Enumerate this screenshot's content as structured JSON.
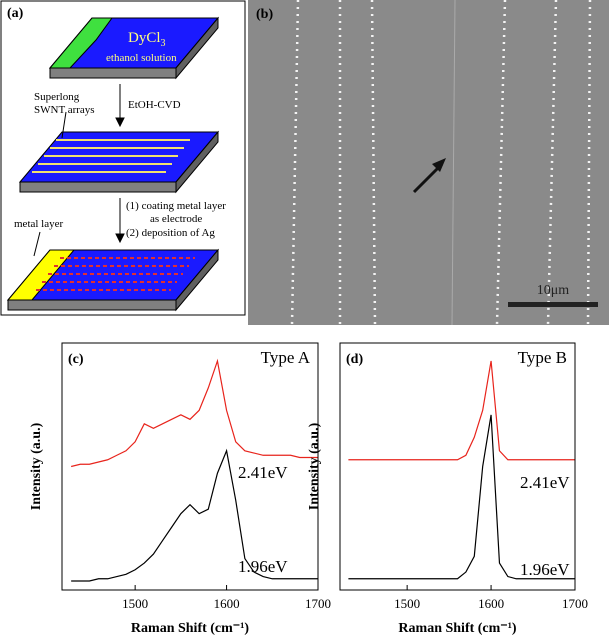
{
  "panel_a": {
    "label": "(a)",
    "dycl": "DyCl",
    "dycl_sub": "3",
    "solution": "ethanol solution",
    "step1": "EtOH-CVD",
    "arrays_1": "Superlong",
    "arrays_2": "SWNT arrays",
    "step2_1": "(1) coating metal layer",
    "step2_2": "as electrode",
    "step2_3": "(2) deposition of Ag",
    "metal": "metal  layer"
  },
  "panel_b": {
    "label": "(b)",
    "scale": "10μm"
  },
  "chart_data": [
    {
      "type": "line",
      "label": "(c)",
      "title": "Type A",
      "x_label": "Raman Shift (cm⁻¹)",
      "y_label": "Intensity (a.u.)",
      "x": [
        1430,
        1440,
        1450,
        1460,
        1470,
        1480,
        1490,
        1500,
        1510,
        1520,
        1530,
        1540,
        1550,
        1560,
        1570,
        1580,
        1590,
        1600,
        1610,
        1620,
        1630,
        1640,
        1650,
        1660,
        1670,
        1680,
        1690,
        1700
      ],
      "series": [
        {
          "name": "2.41eV",
          "color": "#e8241c",
          "values": [
            0.55,
            0.56,
            0.56,
            0.57,
            0.58,
            0.6,
            0.62,
            0.66,
            0.74,
            0.72,
            0.74,
            0.76,
            0.78,
            0.76,
            0.8,
            0.9,
            1.02,
            0.8,
            0.66,
            0.62,
            0.61,
            0.6,
            0.6,
            0.6,
            0.6,
            0.59,
            0.59,
            0.59
          ]
        },
        {
          "name": "1.96eV",
          "color": "#000000",
          "values": [
            0.04,
            0.04,
            0.04,
            0.05,
            0.05,
            0.06,
            0.07,
            0.09,
            0.12,
            0.16,
            0.22,
            0.28,
            0.34,
            0.38,
            0.34,
            0.36,
            0.52,
            0.62,
            0.4,
            0.14,
            0.08,
            0.06,
            0.05,
            0.05,
            0.05,
            0.05,
            0.05,
            0.05
          ]
        }
      ],
      "xlim": [
        1420,
        1700
      ],
      "xticks": [
        1500,
        1600,
        1700
      ],
      "ylim": [
        0,
        1.1
      ]
    },
    {
      "type": "line",
      "label": "(d)",
      "title": "Type B",
      "x_label": "Raman Shift (cm⁻¹)",
      "y_label": "Intensity (a.u.)",
      "x": [
        1430,
        1440,
        1450,
        1460,
        1470,
        1480,
        1490,
        1500,
        1510,
        1520,
        1530,
        1540,
        1550,
        1560,
        1570,
        1580,
        1590,
        1600,
        1610,
        1620,
        1630,
        1640,
        1650,
        1660,
        1670,
        1680,
        1690,
        1700
      ],
      "series": [
        {
          "name": "2.41eV",
          "color": "#e8241c",
          "values": [
            0.58,
            0.58,
            0.58,
            0.58,
            0.58,
            0.58,
            0.58,
            0.58,
            0.58,
            0.58,
            0.58,
            0.58,
            0.58,
            0.58,
            0.6,
            0.68,
            0.8,
            1.02,
            0.62,
            0.58,
            0.58,
            0.58,
            0.58,
            0.58,
            0.58,
            0.58,
            0.58,
            0.58
          ]
        },
        {
          "name": "1.96eV",
          "color": "#000000",
          "values": [
            0.05,
            0.05,
            0.05,
            0.05,
            0.05,
            0.05,
            0.05,
            0.05,
            0.05,
            0.05,
            0.05,
            0.05,
            0.05,
            0.05,
            0.08,
            0.15,
            0.55,
            0.78,
            0.12,
            0.06,
            0.05,
            0.05,
            0.05,
            0.05,
            0.05,
            0.05,
            0.05,
            0.05
          ]
        }
      ],
      "xlim": [
        1420,
        1700
      ],
      "xticks": [
        1500,
        1600,
        1700
      ],
      "ylim": [
        0,
        1.1
      ]
    }
  ]
}
